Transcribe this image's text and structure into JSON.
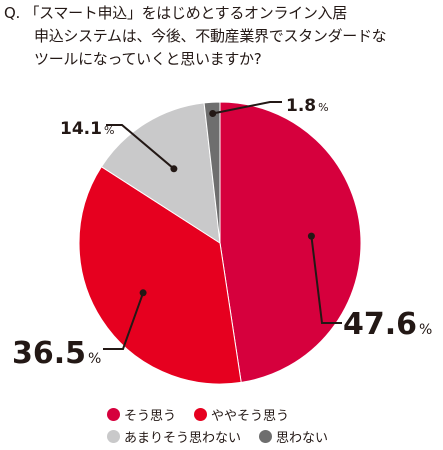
{
  "question": {
    "lines": [
      "Q. 「スマート申込」をはじめとするオンライン入居",
      "申込システムは、今後、不動産業界でスタンダードな",
      "ツールになっていくと思いますか?"
    ]
  },
  "chart_data": {
    "type": "pie",
    "start_angle_deg": 0,
    "direction": "clockwise",
    "slices": [
      {
        "label": "そう思う",
        "value": 47.6,
        "display": "47.6",
        "color": "#d6003d"
      },
      {
        "label": "ややそう思う",
        "value": 36.5,
        "display": "36.5",
        "color": "#e6001f"
      },
      {
        "label": "あまりそう思わない",
        "value": 14.1,
        "display": "14.1",
        "color": "#c9c9ca"
      },
      {
        "label": "思わない",
        "value": 1.8,
        "display": "1.8",
        "color": "#6e6e6e"
      }
    ],
    "unit": "%",
    "legend_placement": "bottom"
  }
}
